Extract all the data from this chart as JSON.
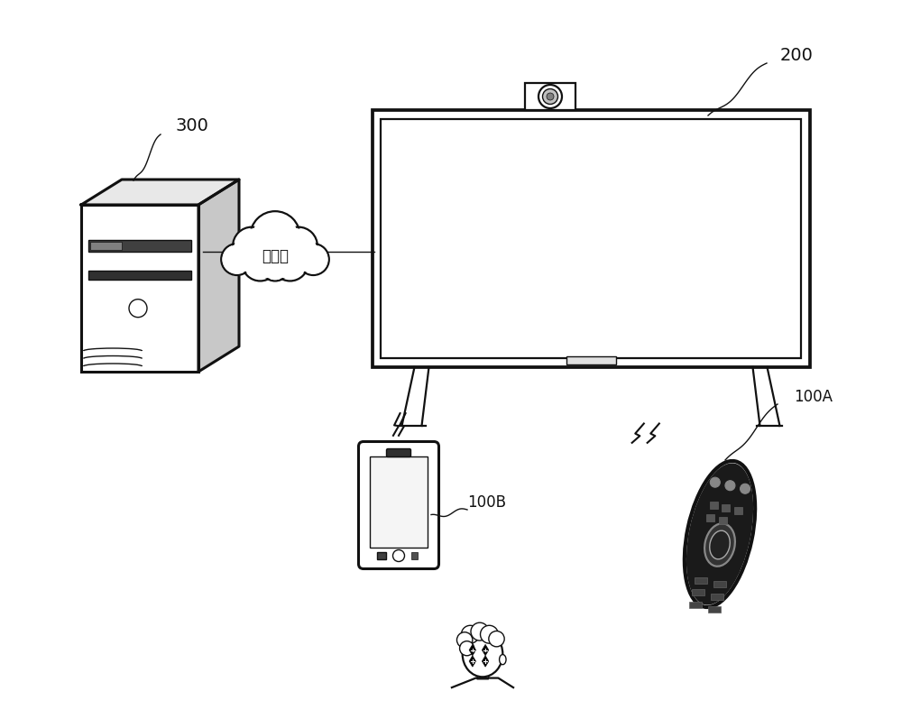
{
  "bg_color": "#ffffff",
  "label_300": "300",
  "label_200": "200",
  "label_100A": "100A",
  "label_100B": "100B",
  "cloud_text": "互联网",
  "figsize": [
    10.0,
    7.97
  ],
  "dpi": 100
}
